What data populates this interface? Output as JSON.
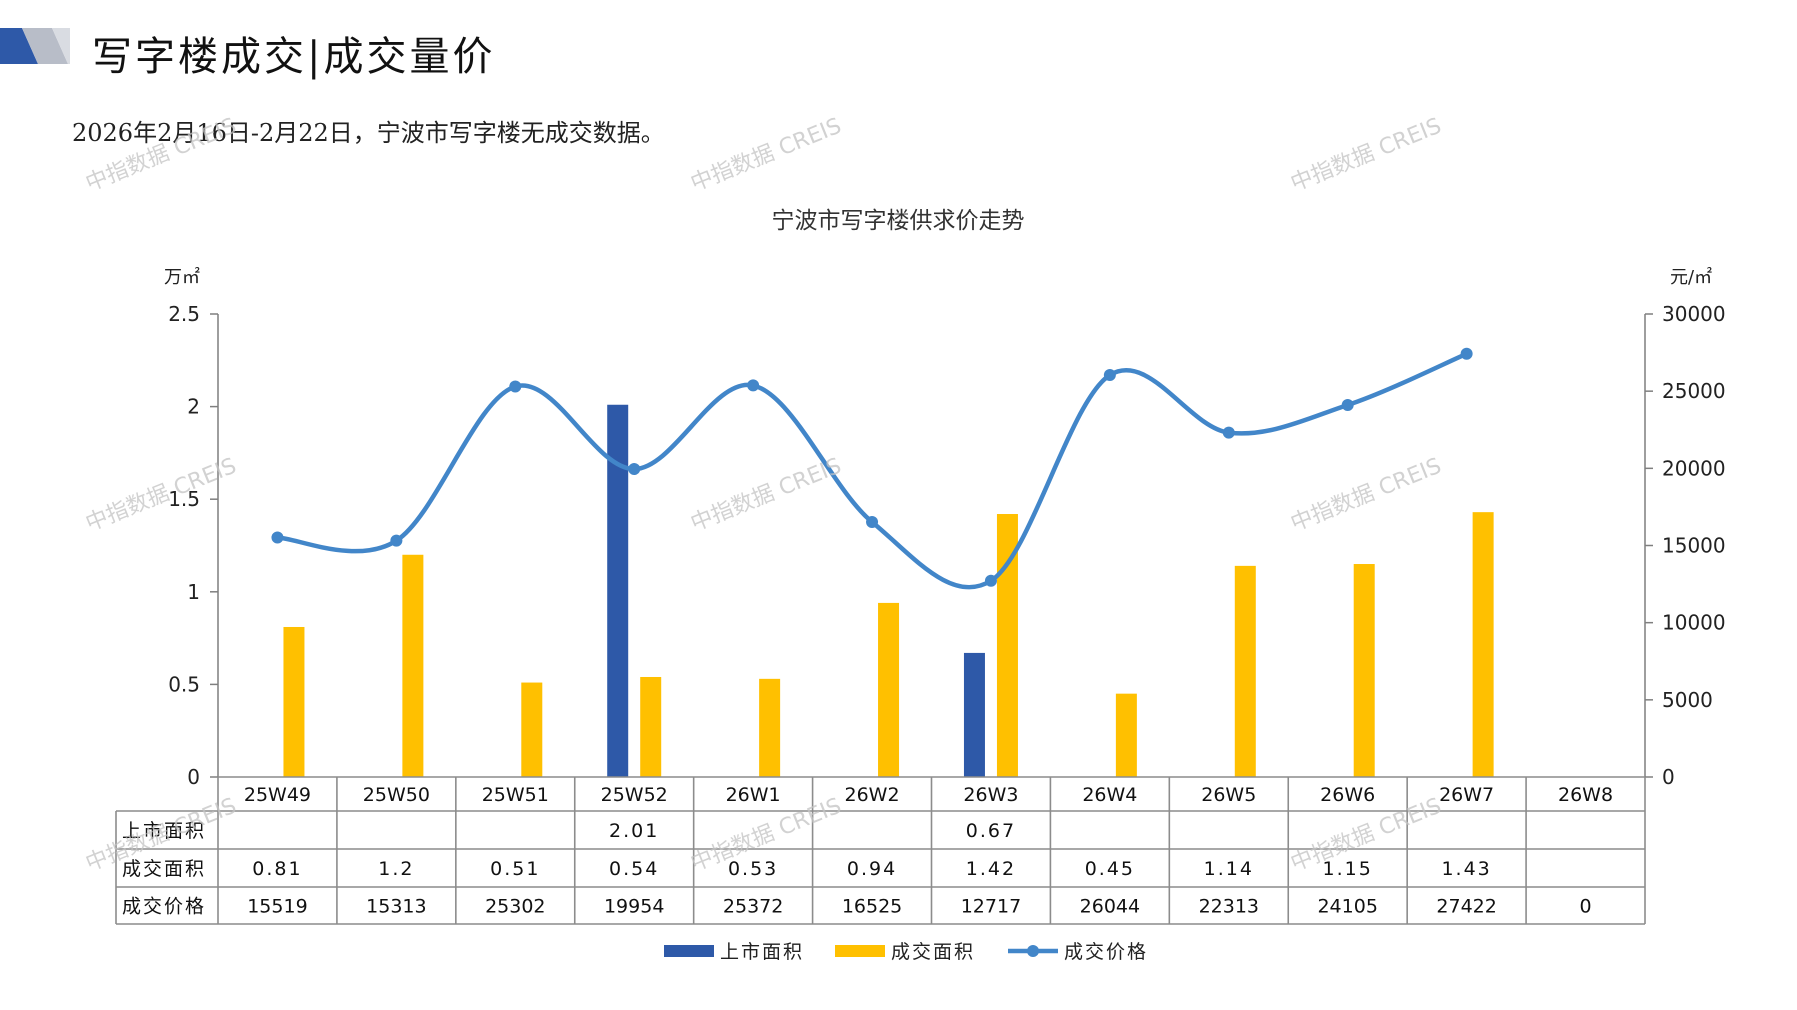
{
  "header": {
    "title": "写字楼成交|成交量价",
    "subtitle": "2026年2月16日-2月22日，宁波市写字楼无成交数据。"
  },
  "watermark": "中指数据 CREIS",
  "colors": {
    "listed": "#2E59A8",
    "transacted_area": "#FFC000",
    "price": "#4286C9",
    "grid": "#7f7f7f"
  },
  "chart_data": {
    "type": "bar",
    "title": "宁波市写字楼供求价走势",
    "y_left_unit": "万㎡",
    "y_right_unit": "元/㎡",
    "y_left_ticks": [
      "0",
      "0.5",
      "1",
      "1.5",
      "2",
      "2.5"
    ],
    "y_right_ticks": [
      "0",
      "5000",
      "10000",
      "15000",
      "20000",
      "25000",
      "30000"
    ],
    "ylim_left": [
      0,
      2.5
    ],
    "ylim_right": [
      0,
      30000
    ],
    "categories": [
      "25W49",
      "25W50",
      "25W51",
      "25W52",
      "26W1",
      "26W2",
      "26W3",
      "26W4",
      "26W5",
      "26W6",
      "26W7",
      "26W8"
    ],
    "series": [
      {
        "name": "上市面积",
        "type": "bar",
        "axis": "left",
        "values": [
          null,
          null,
          null,
          2.01,
          null,
          null,
          0.67,
          null,
          null,
          null,
          null,
          null
        ],
        "labels": [
          "",
          "",
          "",
          "2.01",
          "",
          "",
          "0.67",
          "",
          "",
          "",
          "",
          ""
        ]
      },
      {
        "name": "成交面积",
        "type": "bar",
        "axis": "left",
        "values": [
          0.81,
          1.2,
          0.51,
          0.54,
          0.53,
          0.94,
          1.42,
          0.45,
          1.14,
          1.15,
          1.43,
          null
        ],
        "labels": [
          "0.81",
          "1.2",
          "0.51",
          "0.54",
          "0.53",
          "0.94",
          "1.42",
          "0.45",
          "1.14",
          "1.15",
          "1.43",
          ""
        ]
      },
      {
        "name": "成交价格",
        "type": "line",
        "axis": "right",
        "values": [
          15519,
          15313,
          25302,
          19954,
          25372,
          16525,
          12717,
          26044,
          22313,
          24105,
          27422,
          0
        ],
        "labels": [
          "15519",
          "15313",
          "25302",
          "19954",
          "25372",
          "16525",
          "12717",
          "26044",
          "22313",
          "24105",
          "27422",
          "0"
        ]
      }
    ],
    "legend": {
      "position": "bottom-center"
    },
    "grid": false
  }
}
